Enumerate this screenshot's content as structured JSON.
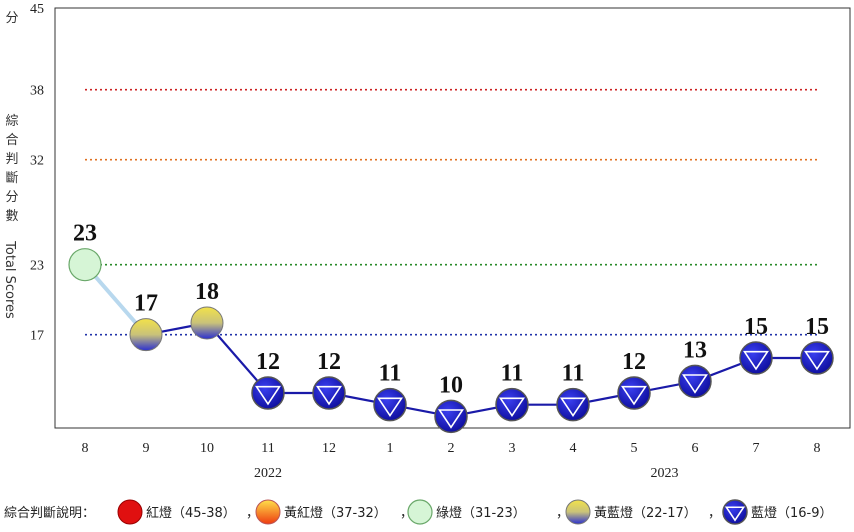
{
  "chart_data": {
    "type": "line",
    "ylabel_zh": [
      "綜",
      "合",
      "判",
      "斷",
      "分",
      "數"
    ],
    "ylabel_en": "Total Scores",
    "y_unit": "分",
    "y_ticks": [
      17,
      23,
      32,
      38,
      45
    ],
    "ylim": [
      9,
      45
    ],
    "categories": [
      "8",
      "9",
      "10",
      "11",
      "12",
      "1",
      "2",
      "3",
      "4",
      "5",
      "6",
      "7",
      "8"
    ],
    "years": [
      {
        "label": "2022",
        "at": 3
      },
      {
        "label": "2023",
        "at": 9.5
      }
    ],
    "values": [
      23,
      17,
      18,
      12,
      12,
      11,
      10,
      11,
      11,
      12,
      13,
      15,
      15
    ],
    "thresholds": [
      {
        "value": 38,
        "color": "#cc2222"
      },
      {
        "value": 32,
        "color": "#e07020"
      },
      {
        "value": 23,
        "color": "#2a8a2a"
      },
      {
        "value": 17,
        "color": "#2233aa"
      }
    ],
    "line_color": "#1a1aa8",
    "legend": {
      "prefix": "綜合判斷說明：",
      "items": [
        {
          "label": "紅燈（45-38）",
          "kind": "red"
        },
        {
          "label": "黃紅燈（37-32）",
          "kind": "yellowred"
        },
        {
          "label": "綠燈（31-23）",
          "kind": "green"
        },
        {
          "label": "黃藍燈（22-17）",
          "kind": "yellowblue"
        },
        {
          "label": "藍燈（16-9）",
          "kind": "blue"
        }
      ],
      "separator": "，"
    }
  }
}
